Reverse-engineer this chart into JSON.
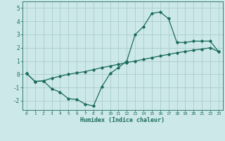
{
  "xlabel": "Humidex (Indice chaleur)",
  "background_color": "#cde8e8",
  "line_color": "#1a6b5e",
  "grid_color": "#aacccc",
  "xlim": [
    -0.5,
    23.5
  ],
  "ylim": [
    -2.7,
    5.5
  ],
  "xticks": [
    0,
    1,
    2,
    3,
    4,
    5,
    6,
    7,
    8,
    9,
    10,
    11,
    12,
    13,
    14,
    15,
    16,
    17,
    18,
    19,
    20,
    21,
    22,
    23
  ],
  "yticks": [
    -2,
    -1,
    0,
    1,
    2,
    3,
    4,
    5
  ],
  "curve1_x": [
    0,
    1,
    2,
    3,
    4,
    5,
    6,
    7,
    8,
    9,
    10,
    11,
    12,
    13,
    14,
    15,
    16,
    17,
    18,
    19,
    20,
    21,
    22,
    23
  ],
  "curve1_y": [
    0.05,
    -0.55,
    -0.5,
    -1.1,
    -1.35,
    -1.85,
    -1.9,
    -2.25,
    -2.4,
    -0.95,
    0.05,
    0.5,
    1.0,
    3.0,
    3.6,
    4.6,
    4.7,
    4.2,
    2.4,
    2.4,
    2.5,
    2.5,
    2.5,
    1.7
  ],
  "curve2_x": [
    0,
    1,
    2,
    3,
    4,
    5,
    6,
    7,
    8,
    9,
    10,
    11,
    12,
    13,
    14,
    15,
    16,
    17,
    18,
    19,
    20,
    21,
    22,
    23
  ],
  "curve2_y": [
    0.05,
    -0.55,
    -0.5,
    -0.3,
    -0.15,
    -0.0,
    0.1,
    0.2,
    0.35,
    0.5,
    0.62,
    0.75,
    0.88,
    1.0,
    1.12,
    1.25,
    1.38,
    1.5,
    1.62,
    1.72,
    1.82,
    1.9,
    2.0,
    1.7
  ]
}
